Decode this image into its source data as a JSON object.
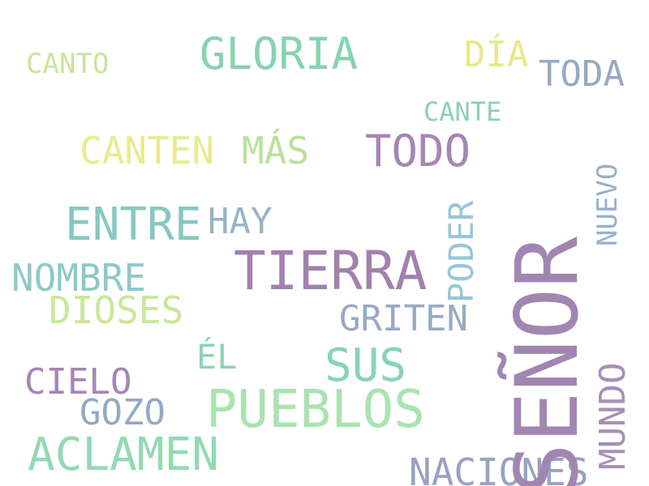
{
  "words": {
    "canto": {
      "text": "CANTO",
      "color": "#c7e69a"
    },
    "gloria": {
      "text": "GLORIA",
      "color": "#86d3b2"
    },
    "dia": {
      "text": "DÍA",
      "color": "#e8e88a"
    },
    "toda": {
      "text": "TODA",
      "color": "#98a8c4"
    },
    "cante": {
      "text": "CANTE",
      "color": "#86d3b2"
    },
    "canten": {
      "text": "CANTEN",
      "color": "#e8ec8e"
    },
    "mas": {
      "text": "MÁS",
      "color": "#b9e29a"
    },
    "todo": {
      "text": "TODO",
      "color": "#a786b2"
    },
    "entre": {
      "text": "ENTRE",
      "color": "#86c8c2"
    },
    "hay": {
      "text": "HAY",
      "color": "#98b4c6"
    },
    "tierra": {
      "text": "TIERRA",
      "color": "#a181ad"
    },
    "nombre": {
      "text": "NOMBRE",
      "color": "#8ccac8"
    },
    "dioses": {
      "text": "DIOSES",
      "color": "#c9e89a"
    },
    "griten": {
      "text": "GRITEN",
      "color": "#98aac2"
    },
    "el": {
      "text": "ÉL",
      "color": "#8cd3b6"
    },
    "sus": {
      "text": "SUS",
      "color": "#86d3bc"
    },
    "cielo": {
      "text": "CIELO",
      "color": "#a386b2"
    },
    "gozo": {
      "text": "GOZO",
      "color": "#94a9c2"
    },
    "pueblos": {
      "text": "PUEBLOS",
      "color": "#a8e4b0"
    },
    "aclamen": {
      "text": "ACLAMEN",
      "color": "#92dab2"
    },
    "naciones": {
      "text": "NACIONES",
      "color": "#98a2c2"
    },
    "poder": {
      "text": "PODER",
      "color": "#98c6d6"
    },
    "senor": {
      "text": "SEÑOR",
      "color": "#a286b2"
    },
    "nuevo": {
      "text": "NUEVO",
      "color": "#98b0cc"
    },
    "mundo": {
      "text": "MUNDO",
      "color": "#a690b6"
    }
  }
}
